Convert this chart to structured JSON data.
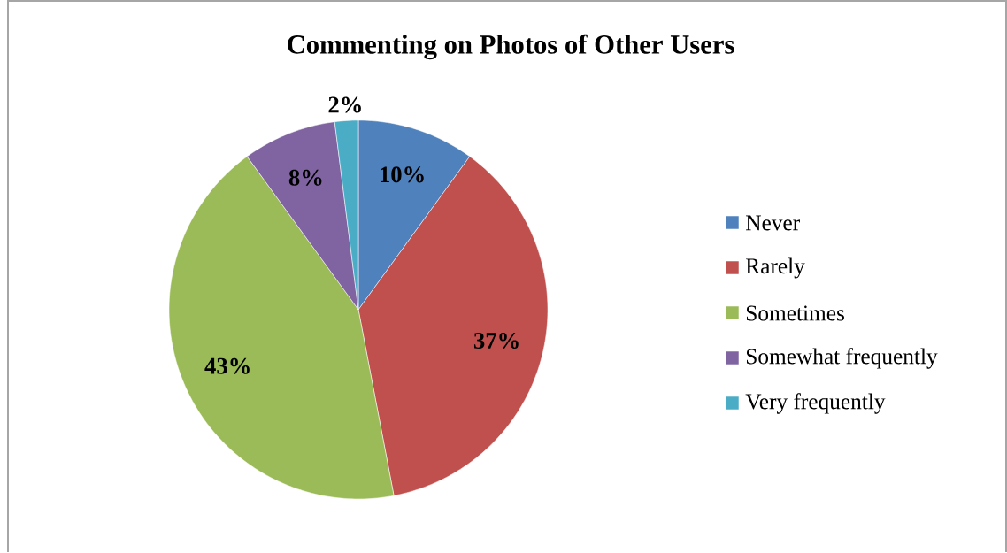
{
  "chart_data": {
    "type": "pie",
    "title": "Commenting on Photos of Other Users",
    "categories": [
      "Never",
      "Rarely",
      "Sometimes",
      "Somewhat frequently",
      "Very frequently"
    ],
    "values": [
      10,
      37,
      43,
      8,
      2
    ],
    "colors": [
      "#4f81bd",
      "#c0504d",
      "#9bbb59",
      "#8064a2",
      "#4bacc6"
    ],
    "value_labels": [
      "10%",
      "37%",
      "43%",
      "8%",
      "2%"
    ],
    "legend": "right"
  }
}
